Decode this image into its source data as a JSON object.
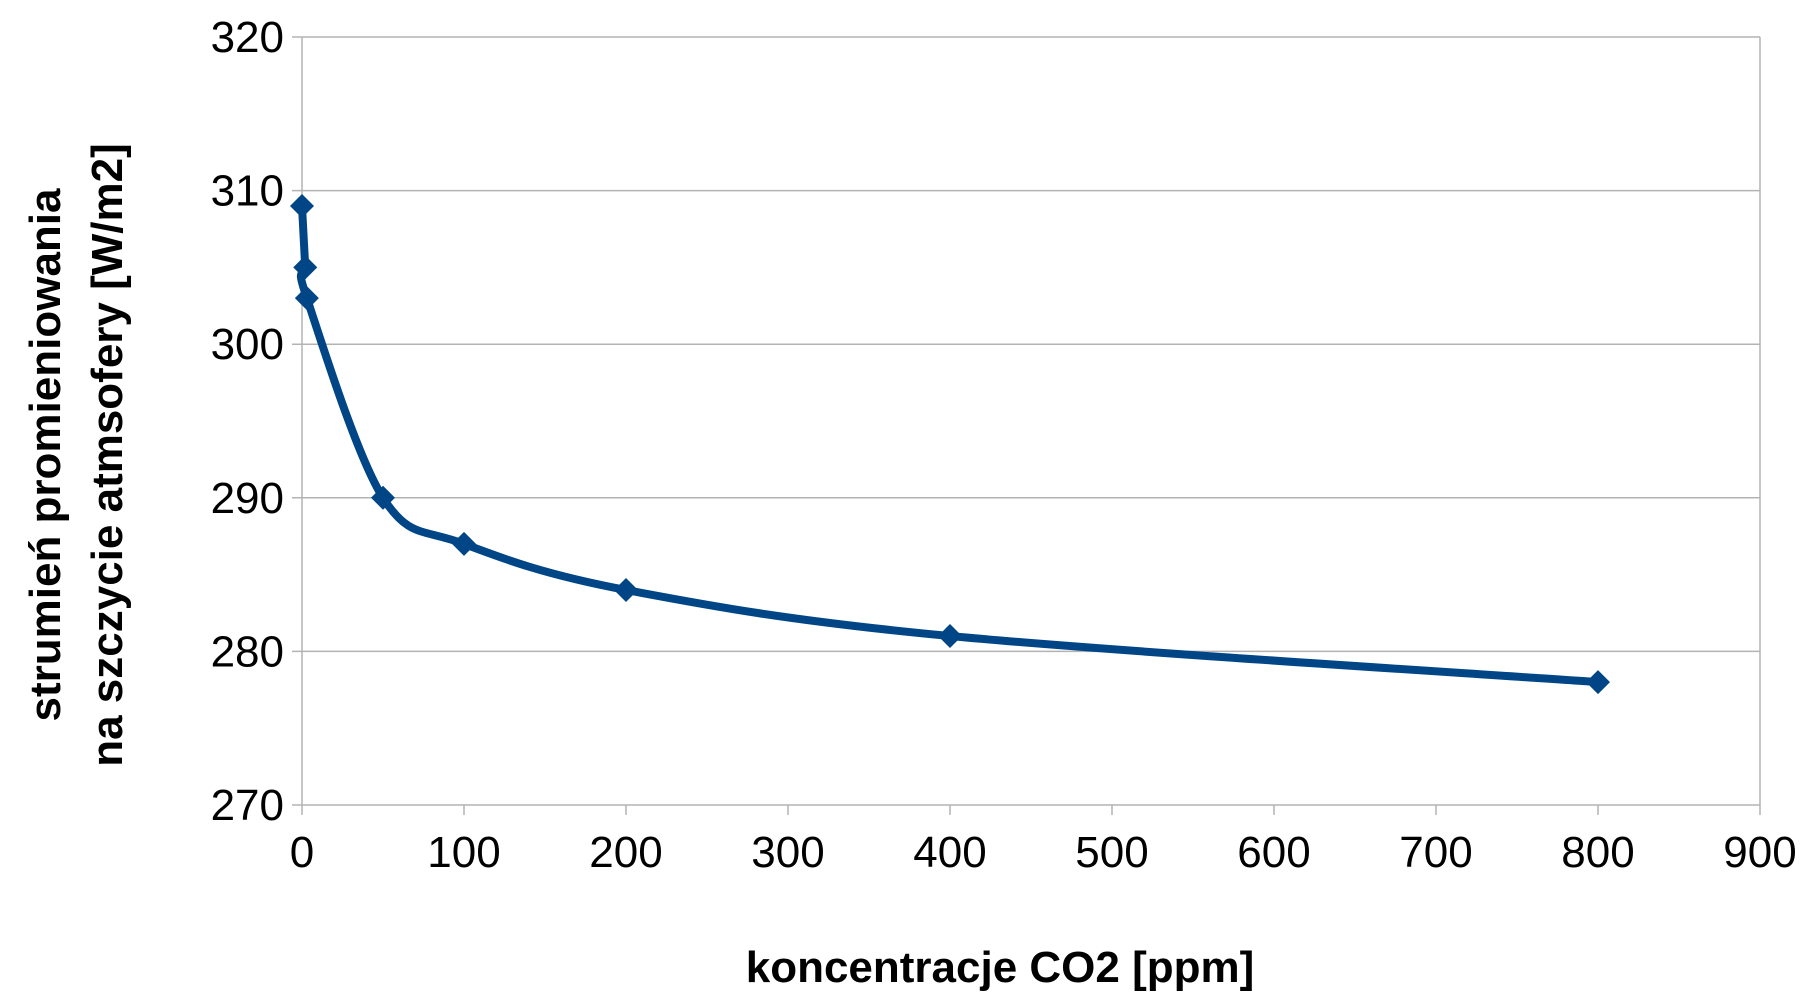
{
  "chart_data": {
    "type": "line",
    "xlabel": "koncentracje CO2 [ppm]",
    "ylabel_lines": [
      "strumień promieniowania",
      "na szczycie atmsofery [W/m2]"
    ],
    "xlim": [
      0,
      900
    ],
    "ylim": [
      270,
      320
    ],
    "xticks": [
      0,
      100,
      200,
      300,
      400,
      500,
      600,
      700,
      800,
      900
    ],
    "yticks": [
      270,
      280,
      290,
      300,
      310,
      320
    ],
    "grid": true,
    "legend": "none",
    "series": [
      {
        "color": "#004586",
        "marker": "diamond",
        "x": [
          0,
          2,
          3,
          50,
          100,
          200,
          400,
          800
        ],
        "y": [
          309,
          305,
          303,
          290,
          287,
          284,
          281,
          278
        ]
      }
    ]
  }
}
